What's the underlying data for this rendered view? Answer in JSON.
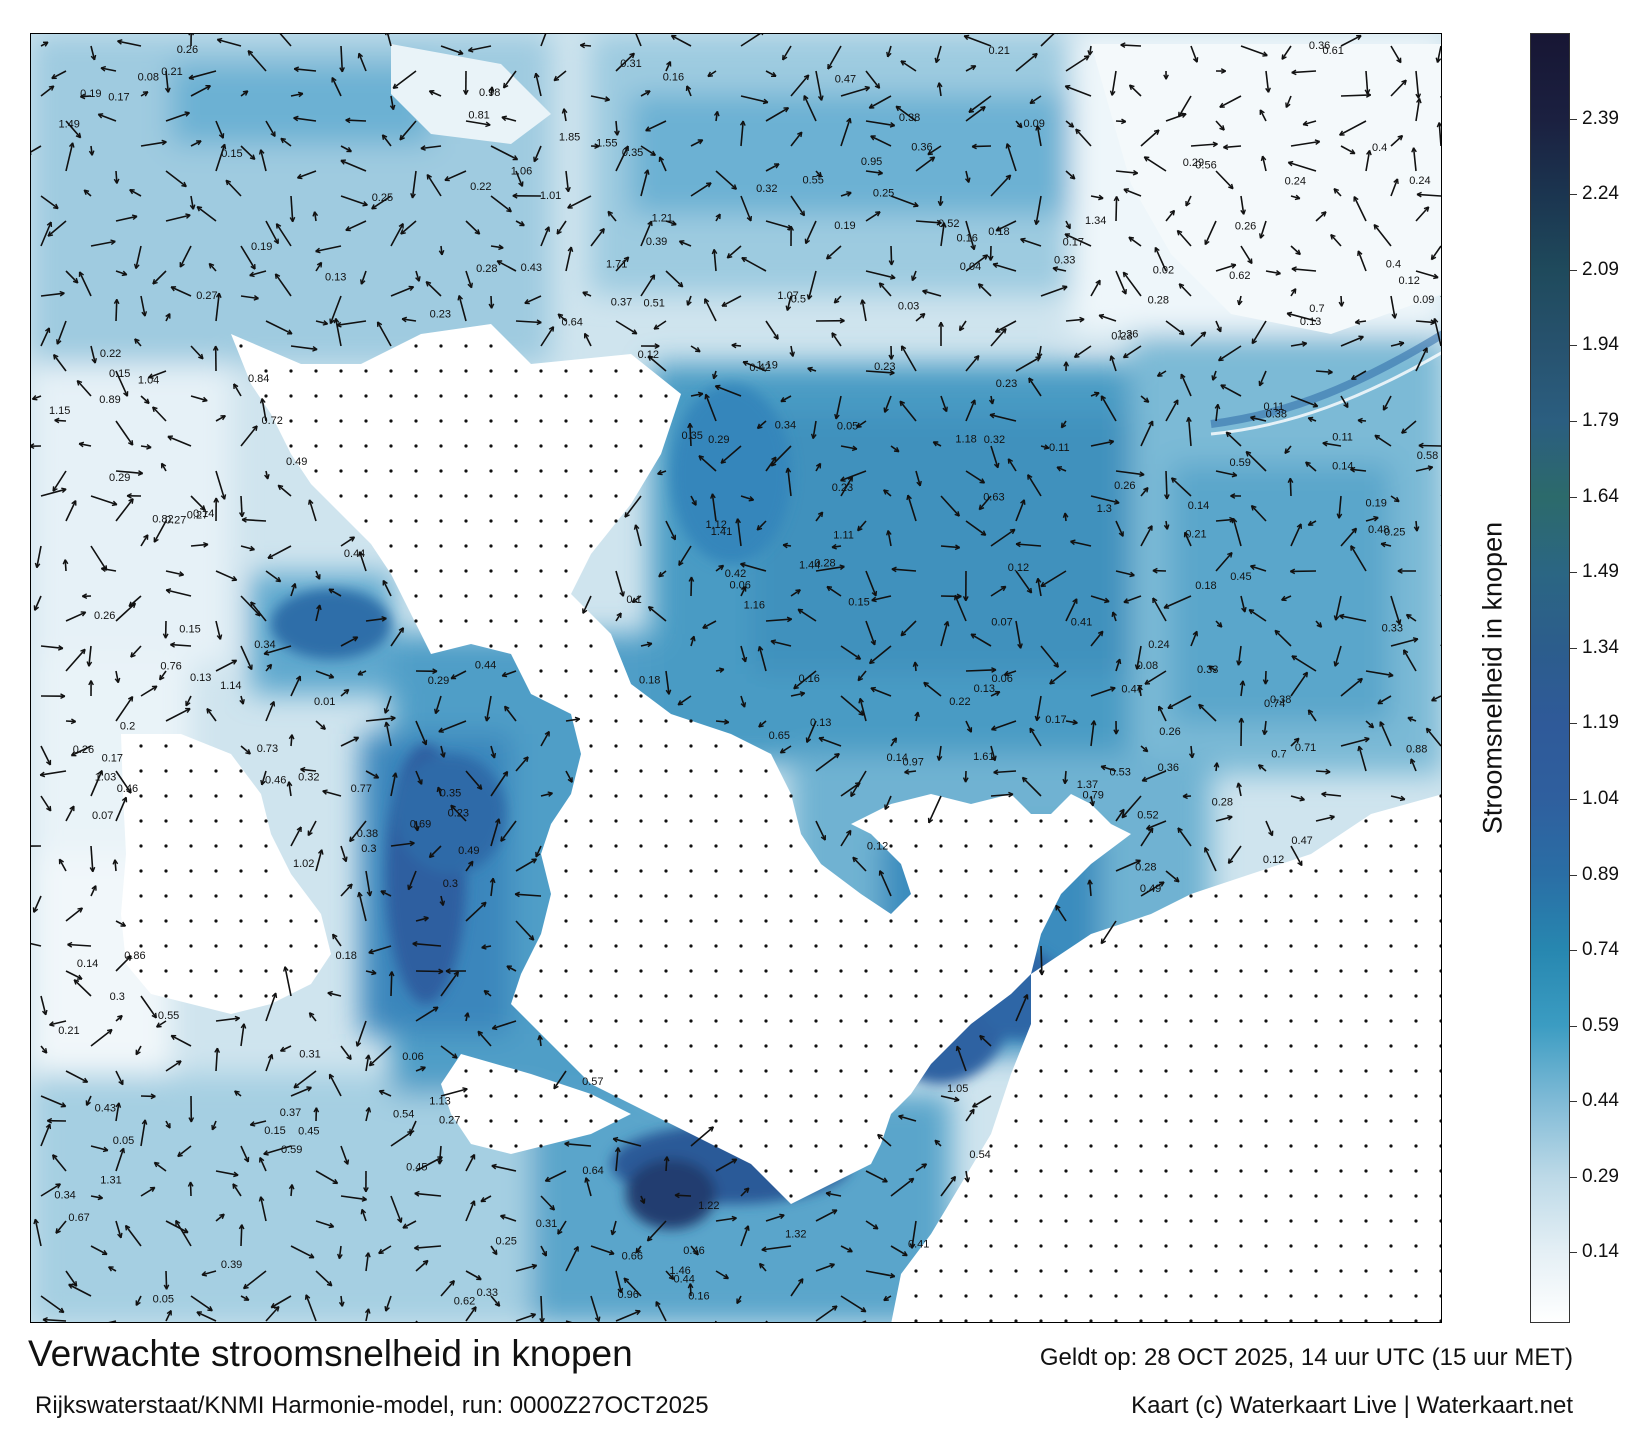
{
  "title": "Verwachte stroomsnelheid in knopen",
  "subtitle": "Rijkswaterstaat/KNMI Harmonie-model, run: 0000Z27OCT2025",
  "valid_time": "Geldt op: 28 OCT 2025, 14 uur UTC (15 uur MET)",
  "credit": "Kaart (c) Waterkaart Live | Waterkaart.net",
  "colorbar": {
    "title": "Stroomsnelheid in knopen",
    "ticks": [
      "0.14",
      "0.29",
      "0.44",
      "0.59",
      "0.74",
      "0.89",
      "1.04",
      "1.19",
      "1.34",
      "1.49",
      "1.64",
      "1.79",
      "1.94",
      "2.09",
      "2.24",
      "2.39"
    ],
    "min": 0.0,
    "max": 2.56,
    "stops": [
      {
        "value": 0.0,
        "color": "#ffffff"
      },
      {
        "value": 0.14,
        "color": "#e4eff5"
      },
      {
        "value": 0.29,
        "color": "#bcd9e7"
      },
      {
        "value": 0.44,
        "color": "#7fbad6"
      },
      {
        "value": 0.59,
        "color": "#3b9cc2"
      },
      {
        "value": 0.74,
        "color": "#2787b0"
      },
      {
        "value": 0.89,
        "color": "#2a6ea5"
      },
      {
        "value": 1.04,
        "color": "#2f5f9e"
      },
      {
        "value": 1.19,
        "color": "#2f5a99"
      },
      {
        "value": 1.34,
        "color": "#2c5d8c"
      },
      {
        "value": 1.49,
        "color": "#2b6683"
      },
      {
        "value": 1.64,
        "color": "#2c6a6b"
      },
      {
        "value": 1.79,
        "color": "#2b5e80"
      },
      {
        "value": 1.94,
        "color": "#27526e"
      },
      {
        "value": 2.09,
        "color": "#1f4a5c"
      },
      {
        "value": 2.24,
        "color": "#1b3550"
      },
      {
        "value": 2.39,
        "color": "#1b2040"
      },
      {
        "value": 2.56,
        "color": "#171634"
      }
    ]
  },
  "map": {
    "water_labels": [
      "0.23",
      "0.27",
      "0.18",
      "0.28",
      "0.19",
      "0.16",
      "0.17",
      "0.24",
      "0.25",
      "0.21",
      "0.13",
      "0.22",
      "0.19",
      "0.23",
      "0.14",
      "0.12",
      "0.29",
      "0.18",
      "0.17",
      "0.15",
      "0.26",
      "0.11",
      "0.3",
      "0.22",
      "0.26",
      "0.29",
      "0.34",
      "0.3",
      "0.26",
      "0.28",
      "0.13",
      "0.15",
      "0.12",
      "0.16",
      "0.18",
      "0.26",
      "0.23",
      "0.31",
      "0.33",
      "0.25",
      "0.27",
      "0.35",
      "0.29",
      "0.32",
      "0.42",
      "0.46",
      "0.33",
      "0.27",
      "0.05",
      "0.05",
      "0.07",
      "0.08",
      "0.12",
      "0.3",
      "0.13",
      "0.14",
      "0.16",
      "0.15",
      "0.12",
      "0.14",
      "0.07",
      "0.06",
      "0.11",
      "0.05",
      "0.06",
      "0.09",
      "0.13",
      "0.21",
      "0.14",
      "0.23",
      "0.55",
      "0.62",
      "0.77",
      "0.7",
      "0.69",
      "0.65",
      "0.59",
      "0.62",
      "0.64",
      "0.52",
      "0.43",
      "0.28",
      "0.45",
      "0.44",
      "0.37",
      "0.38",
      "0.32",
      "0.39",
      "0.26",
      "0.47",
      "0.49",
      "0.54",
      "0.44",
      "0.46",
      "0.41",
      "0.39",
      "0.5",
      "0.48",
      "0.45",
      "0.43",
      "0.41",
      "0.33",
      "0.35",
      "0.36",
      "0.51",
      "0.44",
      "0.42",
      "0.38",
      "0.28",
      "0.24",
      "0.34",
      "0.54",
      "0.57",
      "0.63",
      "0.59",
      "0.73",
      "0.66",
      "0.7",
      "0.71",
      "0.56",
      "0.47",
      "0.46",
      "0.52",
      "0.64",
      "0.53",
      "0.45",
      "0.49",
      "0.61",
      "1.03",
      "1.05",
      "0.95",
      "1.02",
      "1.15",
      "1.21",
      "1.12",
      "0.88",
      "1.07",
      "1.19",
      "1.26",
      "1.34",
      "1.31",
      "1.14",
      "0.97",
      "1.16",
      "1.06",
      "1.22",
      "1.41",
      "1.61",
      "1.55",
      "1.44",
      "1.49",
      "1.32",
      "1.37",
      "1.3",
      "1.18",
      "1.11",
      "1.01",
      "0.96",
      "0.98",
      "1.04",
      "1.13",
      "1.46",
      "1.85",
      "1.71",
      "0.84",
      "0.76",
      "0.72",
      "0.86",
      "0.89",
      "0.82",
      "0.81",
      "0.79",
      "0.74",
      "0.67",
      "0.58",
      "0.49",
      "0.19",
      "0.17",
      "0.15",
      "0.11",
      "0.09",
      "0.08",
      "0.1",
      "0.04",
      "0.03",
      "0.02",
      "0.01",
      "0.06",
      "0.2",
      "0.23",
      "0.25",
      "0.31",
      "0.36",
      "0.4",
      "0.37",
      "0.38",
      "0.35",
      "0.22",
      "0.24",
      "0.21",
      "0.33",
      "0.34",
      "0.31",
      "0.26",
      "0.19",
      "0.27",
      "0.29",
      "0.18",
      "0.14",
      "0.15",
      "0.13",
      "0.16",
      "0.12",
      "0.17",
      "0.21",
      "0.23",
      "0.28",
      "0.32",
      "0.36",
      "0.25",
      "0.38",
      "0.4",
      "0.47",
      "0.55"
    ]
  }
}
